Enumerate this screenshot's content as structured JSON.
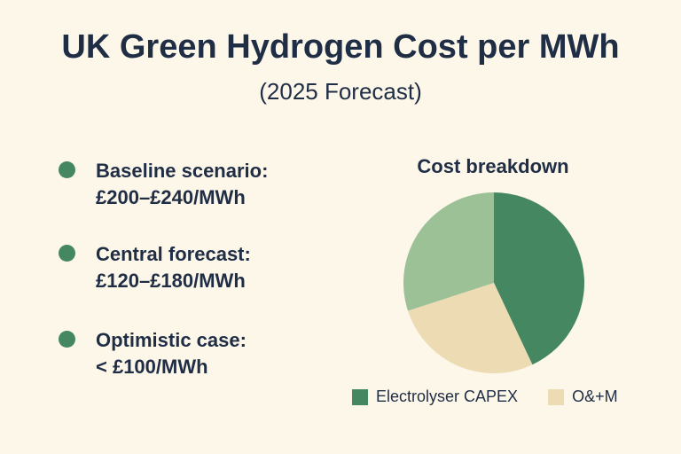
{
  "title": "UK Green Hydrogen Cost per MWh",
  "subtitle": "(2025 Forecast)",
  "bullets": [
    {
      "label": "Baseline scenario:",
      "value": "£200–£240/MWh"
    },
    {
      "label": "Central forecast:",
      "value": "£120–£180/MWh"
    },
    {
      "label": "Optimistic case:",
      "value": "< £100/MWh"
    }
  ],
  "colors": {
    "background": "#fdf7ea",
    "text": "#1f2d45",
    "bullet": "#458760"
  },
  "chart_data": {
    "type": "pie",
    "title": "Cost breakdown",
    "slices": [
      {
        "name": "Electrolyser CAPEX",
        "value": 43,
        "color": "#458760"
      },
      {
        "name": "O&+M",
        "value": 27,
        "color": "#ecdbb3"
      },
      {
        "name": "",
        "value": 30,
        "color": "#9dc197"
      }
    ],
    "legend_position": "bottom"
  }
}
